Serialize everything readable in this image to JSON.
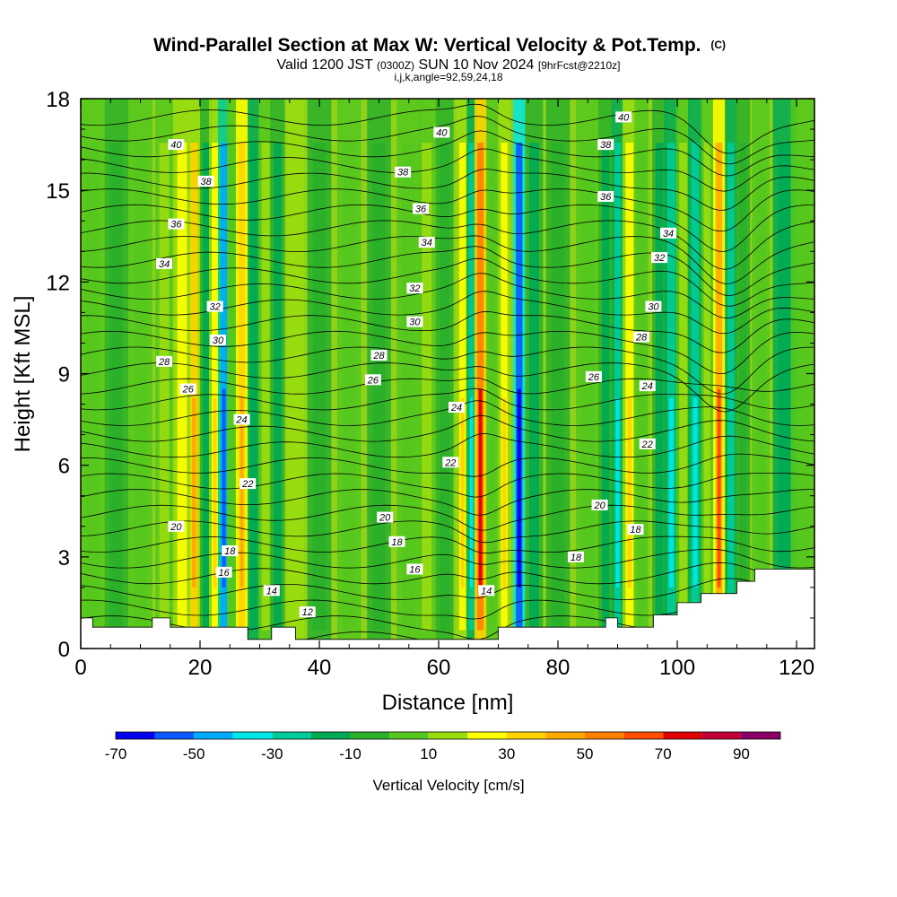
{
  "chart_data": {
    "type": "heatmap",
    "title": "Wind-Parallel Section at Max W: Vertical Velocity & Pot.Temp.",
    "title_mark": "(C)",
    "subtitle_parts": [
      "Valid 1200 JST ",
      "(0300Z)",
      " SUN 10 Nov 2024 ",
      "[9hrFcst@2210z]"
    ],
    "subtitle2": "i,j,k,angle=92,59,24,18",
    "xlabel": "Distance [nm]",
    "ylabel": "Height [Kft MSL]",
    "xlim": [
      0,
      123
    ],
    "ylim": [
      0,
      18
    ],
    "x_ticks": [
      "0",
      "20",
      "40",
      "60",
      "80",
      "100",
      "120"
    ],
    "x_tick_values": [
      0,
      20,
      40,
      60,
      80,
      100,
      120
    ],
    "y_ticks": [
      "0",
      "3",
      "6",
      "9",
      "12",
      "15",
      "18"
    ],
    "y_tick_values": [
      0,
      3,
      6,
      9,
      12,
      15,
      18
    ],
    "colorbar": {
      "label": "Vertical Velocity [cm/s]",
      "tick_labels": [
        "-70",
        "-50",
        "-30",
        "-10",
        "10",
        "30",
        "50",
        "70",
        "90"
      ],
      "bounds": [
        -70,
        -60,
        -50,
        -40,
        -30,
        -20,
        -10,
        0,
        10,
        20,
        30,
        40,
        50,
        60,
        70,
        80,
        90,
        100
      ],
      "colors": [
        "#0000ee",
        "#0a5aff",
        "#00aaff",
        "#00e8e8",
        "#00cc99",
        "#00aa55",
        "#2ab02a",
        "#55c81e",
        "#99dd10",
        "#ffff00",
        "#ffd400",
        "#ffaa00",
        "#ff8000",
        "#ff4d00",
        "#e00000",
        "#c0003a",
        "#8a0066",
        "#5a0088"
      ]
    },
    "vertical_velocity_columns": [
      {
        "x": 2,
        "w": 2,
        "value": 0
      },
      {
        "x": 6,
        "w": 2,
        "value": -5
      },
      {
        "x": 10,
        "w": 2,
        "value": 8
      },
      {
        "x": 14,
        "w": 1.5,
        "value": 15
      },
      {
        "x": 17,
        "w": 1.5,
        "value": 28
      },
      {
        "x": 19,
        "w": 1.2,
        "value": 40
      },
      {
        "x": 21,
        "w": 1.0,
        "value": -20
      },
      {
        "x": 22.5,
        "w": 1.0,
        "value": 35
      },
      {
        "x": 24,
        "w": 1.0,
        "value": -60
      },
      {
        "x": 25.5,
        "w": 1.0,
        "value": 10
      },
      {
        "x": 27,
        "w": 1.0,
        "value": 45
      },
      {
        "x": 29,
        "w": 1.0,
        "value": -25
      },
      {
        "x": 31,
        "w": 1.2,
        "value": 20
      },
      {
        "x": 33,
        "w": 1.2,
        "value": -15
      },
      {
        "x": 36,
        "w": 1.5,
        "value": 25
      },
      {
        "x": 40,
        "w": 2,
        "value": -5
      },
      {
        "x": 45,
        "w": 2,
        "value": 12
      },
      {
        "x": 50,
        "w": 2,
        "value": -8
      },
      {
        "x": 55,
        "w": 2,
        "value": 10
      },
      {
        "x": 58,
        "w": 1.5,
        "value": 22
      },
      {
        "x": 61,
        "w": 1.5,
        "value": -5
      },
      {
        "x": 64,
        "w": 1.0,
        "value": 35
      },
      {
        "x": 65.5,
        "w": 0.8,
        "value": -35
      },
      {
        "x": 67,
        "w": 1.0,
        "value": 75
      },
      {
        "x": 69,
        "w": 1.0,
        "value": 10
      },
      {
        "x": 71,
        "w": 1.0,
        "value": 30
      },
      {
        "x": 73.5,
        "w": 1.0,
        "value": -68
      },
      {
        "x": 76,
        "w": 1.5,
        "value": -20
      },
      {
        "x": 80,
        "w": 2,
        "value": -8
      },
      {
        "x": 85,
        "w": 2,
        "value": 8
      },
      {
        "x": 88,
        "w": 1.2,
        "value": -18
      },
      {
        "x": 90,
        "w": 1.0,
        "value": -40
      },
      {
        "x": 92,
        "w": 1.2,
        "value": 30
      },
      {
        "x": 94,
        "w": 1.2,
        "value": 5
      },
      {
        "x": 97,
        "w": 1.2,
        "value": -20
      },
      {
        "x": 99,
        "w": 1.2,
        "value": -35
      },
      {
        "x": 101,
        "w": 1.2,
        "value": 15
      },
      {
        "x": 103,
        "w": 1.2,
        "value": -40
      },
      {
        "x": 105,
        "w": 1.0,
        "value": 20
      },
      {
        "x": 107,
        "w": 1.0,
        "value": 65
      },
      {
        "x": 109,
        "w": 1.0,
        "value": -30
      },
      {
        "x": 111,
        "w": 1.2,
        "value": -10
      },
      {
        "x": 114,
        "w": 1.5,
        "value": 12
      },
      {
        "x": 118,
        "w": 2,
        "value": -25
      },
      {
        "x": 121,
        "w": 2,
        "value": 5
      }
    ],
    "theta_contour_levels": [
      12,
      14,
      16,
      18,
      20,
      22,
      24,
      26,
      28,
      30,
      32,
      34,
      36,
      38,
      40
    ],
    "contour_labels": [
      {
        "text": "40",
        "x": 16,
        "y": 16.5
      },
      {
        "text": "38",
        "x": 21,
        "y": 15.3
      },
      {
        "text": "36",
        "x": 16,
        "y": 13.9
      },
      {
        "text": "34",
        "x": 14,
        "y": 12.6
      },
      {
        "text": "32",
        "x": 22.5,
        "y": 11.2
      },
      {
        "text": "30",
        "x": 23,
        "y": 10.1
      },
      {
        "text": "28",
        "x": 14,
        "y": 9.4
      },
      {
        "text": "26",
        "x": 18,
        "y": 8.5
      },
      {
        "text": "24",
        "x": 27,
        "y": 7.5
      },
      {
        "text": "22",
        "x": 28,
        "y": 5.4
      },
      {
        "text": "20",
        "x": 16,
        "y": 4.0
      },
      {
        "text": "18",
        "x": 25,
        "y": 3.2
      },
      {
        "text": "16",
        "x": 24,
        "y": 2.5
      },
      {
        "text": "14",
        "x": 32,
        "y": 1.9
      },
      {
        "text": "12",
        "x": 38,
        "y": 1.2
      },
      {
        "text": "40",
        "x": 60.5,
        "y": 16.9
      },
      {
        "text": "38",
        "x": 54,
        "y": 15.6
      },
      {
        "text": "36",
        "x": 57,
        "y": 14.4
      },
      {
        "text": "34",
        "x": 58,
        "y": 13.3
      },
      {
        "text": "32",
        "x": 56,
        "y": 11.8
      },
      {
        "text": "30",
        "x": 56,
        "y": 10.7
      },
      {
        "text": "28",
        "x": 50,
        "y": 9.6
      },
      {
        "text": "26",
        "x": 49,
        "y": 8.8
      },
      {
        "text": "24",
        "x": 63,
        "y": 7.9
      },
      {
        "text": "22",
        "x": 62,
        "y": 6.1
      },
      {
        "text": "20",
        "x": 51,
        "y": 4.3
      },
      {
        "text": "18",
        "x": 53,
        "y": 3.5
      },
      {
        "text": "16",
        "x": 56,
        "y": 2.6
      },
      {
        "text": "14",
        "x": 68,
        "y": 1.9
      },
      {
        "text": "40",
        "x": 91,
        "y": 17.4
      },
      {
        "text": "38",
        "x": 88,
        "y": 16.5
      },
      {
        "text": "36",
        "x": 88,
        "y": 14.8
      },
      {
        "text": "34",
        "x": 98.5,
        "y": 13.6
      },
      {
        "text": "32",
        "x": 97,
        "y": 12.8
      },
      {
        "text": "30",
        "x": 96,
        "y": 11.2
      },
      {
        "text": "28",
        "x": 94,
        "y": 10.2
      },
      {
        "text": "26",
        "x": 86,
        "y": 8.9
      },
      {
        "text": "24",
        "x": 95,
        "y": 8.6
      },
      {
        "text": "22",
        "x": 95,
        "y": 6.7
      },
      {
        "text": "20",
        "x": 87,
        "y": 4.7
      },
      {
        "text": "18",
        "x": 93,
        "y": 3.9
      },
      {
        "text": "18",
        "x": 83,
        "y": 3.0
      }
    ]
  }
}
